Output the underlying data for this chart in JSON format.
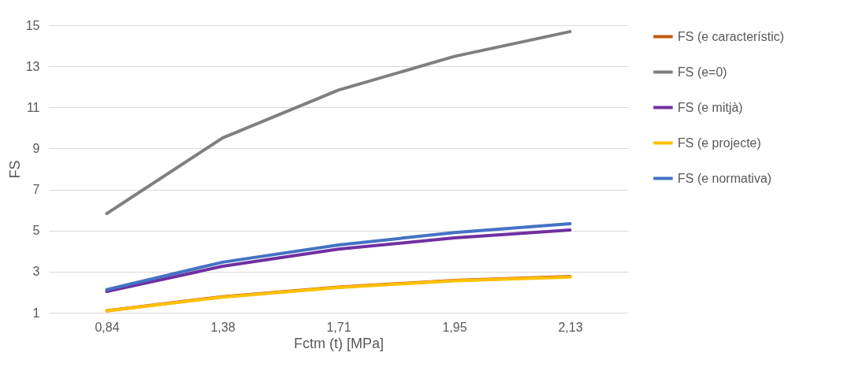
{
  "chart_data": {
    "type": "line",
    "xlabel": "Fctm (t) [MPa]",
    "ylabel": "FS",
    "categories": [
      "0,84",
      "1,38",
      "1,71",
      "1,95",
      "2,13"
    ],
    "series": [
      {
        "name": "FS (e característic)",
        "color": "#c55a11",
        "values": [
          1.1,
          1.78,
          2.25,
          2.57,
          2.76
        ]
      },
      {
        "name": "FS (e=0)",
        "color": "#7f7f7f",
        "values": [
          5.83,
          9.51,
          11.84,
          13.48,
          14.69
        ]
      },
      {
        "name": "FS (e mitjà)",
        "color": "#7030a0",
        "values": [
          2.03,
          3.26,
          4.1,
          4.64,
          5.03
        ]
      },
      {
        "name": "FS (e projecte)",
        "color": "#ffc000",
        "values": [
          1.09,
          1.76,
          2.23,
          2.55,
          2.74
        ]
      },
      {
        "name": "FS (e normativa)",
        "color": "#4472c4",
        "values": [
          2.12,
          3.46,
          4.3,
          4.9,
          5.33
        ]
      }
    ],
    "ylim": [
      1,
      15
    ],
    "yticks": [
      1,
      3,
      5,
      7,
      9,
      11,
      13,
      15
    ],
    "grid": "y",
    "legend": "right",
    "marker": "none",
    "line_style": "solid"
  }
}
